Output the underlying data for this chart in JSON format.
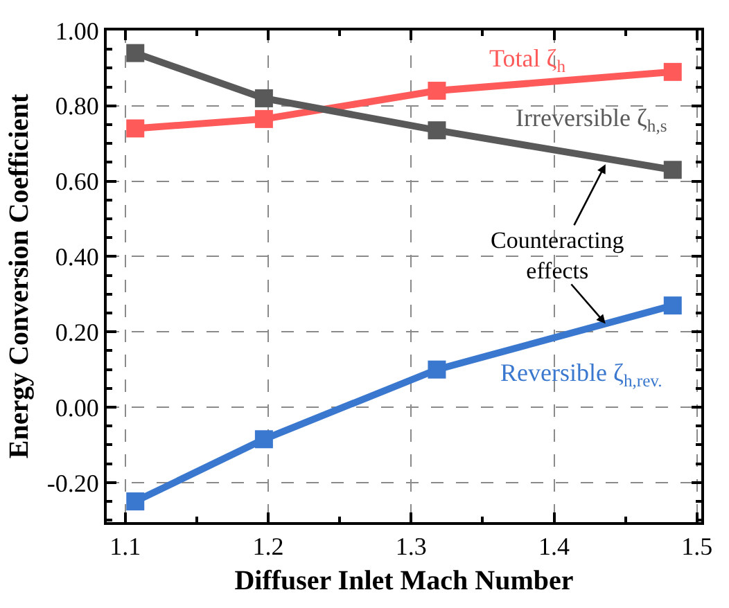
{
  "chart_data": {
    "type": "line",
    "xlabel": "Diffuser Inlet Mach Number",
    "ylabel": "Energy Conversion Coefficient",
    "x": [
      1.107,
      1.197,
      1.318,
      1.483
    ],
    "series": [
      {
        "name": "Total ζ$_{h}$",
        "color": "#ff5a5a",
        "values": [
          0.74,
          0.765,
          0.84,
          0.89
        ]
      },
      {
        "name": "Irreversible ζ$_{h,s}$",
        "color": "#595959",
        "values": [
          0.94,
          0.82,
          0.735,
          0.63
        ]
      },
      {
        "name": "Reversible ζ$_{h,rev.}$",
        "color": "#3a78cf",
        "values": [
          -0.25,
          -0.085,
          0.1,
          0.27
        ]
      }
    ],
    "xlim": [
      1.087,
      1.503
    ],
    "xticks": [
      1.1,
      1.2,
      1.3,
      1.4,
      1.5
    ],
    "ylim": [
      -0.305,
      1.0
    ],
    "yticks": [
      {
        "value": -0.2,
        "label": "-0.20"
      },
      {
        "value": 0,
        "label": "0.00"
      },
      {
        "value": 0.2,
        "label": "0.20"
      },
      {
        "value": 0.4,
        "label": "0.40"
      },
      {
        "value": 0.6,
        "label": "0.60"
      },
      {
        "value": 0.8,
        "label": "0.80"
      },
      {
        "value": 1.0,
        "label": "1.00"
      }
    ],
    "annotations": [
      {
        "text": "Counteracting effects",
        "x": 1.436,
        "y": 0.645
      }
    ],
    "grid": true,
    "legend": false,
    "marker": "square",
    "line_style": "solid"
  }
}
